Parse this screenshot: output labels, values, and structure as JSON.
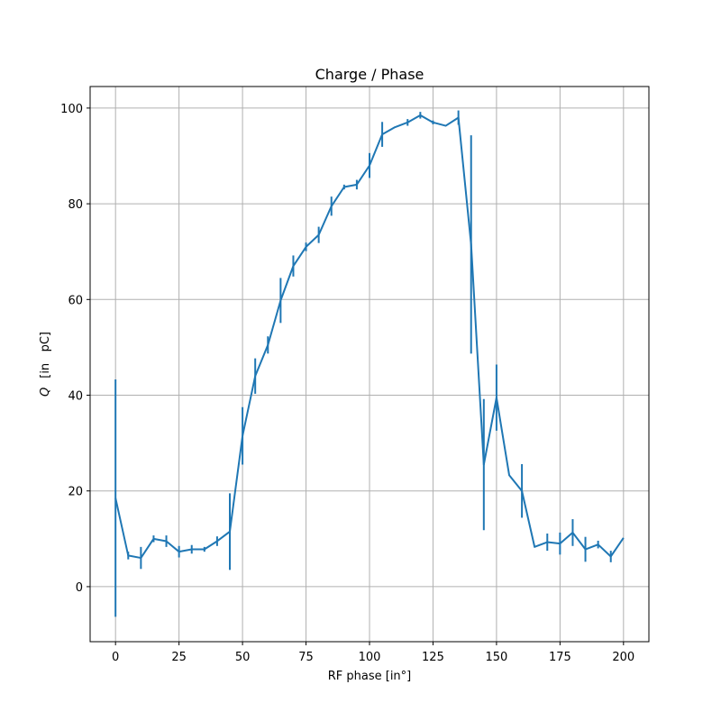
{
  "chart_data": {
    "type": "line",
    "title": "Charge / Phase",
    "xlabel": "RF phase [in°]",
    "ylabel_symbol": "Q",
    "ylabel_units": "[in   pC]",
    "xlim": [
      -10,
      210
    ],
    "ylim": [
      -11.5,
      104.5
    ],
    "xticks": [
      0,
      25,
      50,
      75,
      100,
      125,
      150,
      175,
      200
    ],
    "yticks": [
      0,
      20,
      40,
      60,
      80,
      100
    ],
    "grid": true,
    "line_color": "#1f77b4",
    "series": [
      {
        "x": [
          0,
          5,
          10,
          15,
          20,
          25,
          30,
          35,
          40,
          45,
          50,
          55,
          60,
          65,
          70,
          75,
          80,
          85,
          90,
          95,
          100,
          105,
          110,
          115,
          120,
          125,
          130,
          135,
          140,
          145,
          150,
          155,
          160,
          165,
          170,
          175,
          180,
          185,
          190,
          195,
          200
        ],
        "y": [
          18.5,
          6.5,
          6.0,
          10.0,
          9.5,
          7.3,
          7.8,
          7.8,
          9.5,
          11.5,
          31.5,
          44.0,
          50.5,
          59.8,
          67.0,
          71.0,
          73.5,
          79.5,
          83.5,
          84.0,
          88.0,
          94.5,
          96.0,
          97.0,
          98.5,
          97.0,
          96.3,
          98.0,
          71.5,
          25.5,
          39.5,
          23.3,
          20.0,
          8.3,
          9.3,
          9.0,
          11.3,
          7.8,
          8.8,
          6.3,
          10.2
        ],
        "err": [
          24.8,
          0.8,
          2.3,
          0.7,
          1.2,
          1.2,
          0.9,
          0.5,
          1.0,
          8.0,
          6.0,
          3.7,
          1.8,
          4.7,
          2.2,
          0.9,
          1.7,
          2.0,
          0.5,
          1.0,
          2.6,
          2.6,
          0.0,
          0.7,
          0.7,
          0.4,
          0.0,
          1.5,
          22.8,
          13.7,
          6.9,
          0.0,
          5.6,
          0.0,
          1.8,
          2.3,
          2.8,
          2.6,
          0.8,
          1.2,
          0.0
        ]
      }
    ]
  }
}
